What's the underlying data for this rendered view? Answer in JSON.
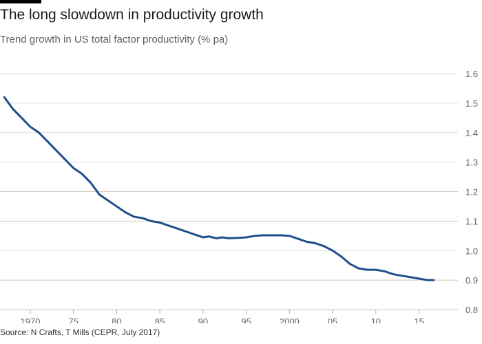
{
  "header": {
    "title": "The long slowdown in productivity growth",
    "subtitle": "Trend growth in US total factor productivity (% pa)"
  },
  "footer": {
    "source": "Source: N Crafts, T Mills (CEPR, July 2017)"
  },
  "colors": {
    "line": "#1f4e8c",
    "grid": "#e0dcd8",
    "grid_major": "#cfc4b8",
    "text": "#66605c"
  },
  "chart_data": {
    "type": "line",
    "title": "The long slowdown in productivity growth",
    "subtitle": "Trend growth in US total factor productivity (% pa)",
    "xlim": [
      1966.5,
      2019.5
    ],
    "ylim": [
      0.8,
      1.6
    ],
    "y_ticks": [
      0.8,
      0.9,
      1.0,
      1.1,
      1.2,
      1.3,
      1.4,
      1.5,
      1.6
    ],
    "y_tick_labels": [
      "0.8",
      "0.9",
      "1.0",
      "1.1",
      "1.2",
      "1.3",
      "1.4",
      "1.5",
      "1.6"
    ],
    "x_ticks": [
      1970,
      1975,
      1980,
      1985,
      1990,
      1995,
      2000,
      2005,
      2010,
      2015
    ],
    "x_tick_labels": [
      "1970",
      "75",
      "80",
      "85",
      "90",
      "95",
      "2000",
      "05",
      "10",
      "15"
    ],
    "y_axis_side": "right",
    "grid": "horizontal",
    "series": [
      {
        "x": [
          1967,
          1968,
          1969,
          1970,
          1971,
          1972,
          1973,
          1974,
          1975,
          1976,
          1977,
          1978,
          1979,
          1980,
          1981,
          1982,
          1983,
          1984,
          1985,
          1986,
          1987,
          1988,
          1989,
          1990,
          1990.7,
          1991.2,
          1991.6,
          1992.2,
          1993,
          1994,
          1995,
          1996,
          1997,
          1998,
          1999,
          2000,
          2001,
          2002,
          2003,
          2004,
          2005,
          2006,
          2007,
          2008,
          2009,
          2010,
          2011,
          2012,
          2013,
          2014,
          2015,
          2016,
          2016.7
        ],
        "values": [
          1.52,
          1.48,
          1.45,
          1.42,
          1.4,
          1.37,
          1.34,
          1.31,
          1.28,
          1.26,
          1.23,
          1.19,
          1.17,
          1.15,
          1.13,
          1.115,
          1.11,
          1.1,
          1.095,
          1.085,
          1.075,
          1.065,
          1.055,
          1.045,
          1.048,
          1.044,
          1.042,
          1.045,
          1.042,
          1.043,
          1.045,
          1.05,
          1.052,
          1.052,
          1.052,
          1.05,
          1.04,
          1.03,
          1.025,
          1.015,
          1.0,
          0.98,
          0.955,
          0.94,
          0.935,
          0.935,
          0.93,
          0.92,
          0.915,
          0.91,
          0.905,
          0.9,
          0.9
        ]
      }
    ]
  }
}
